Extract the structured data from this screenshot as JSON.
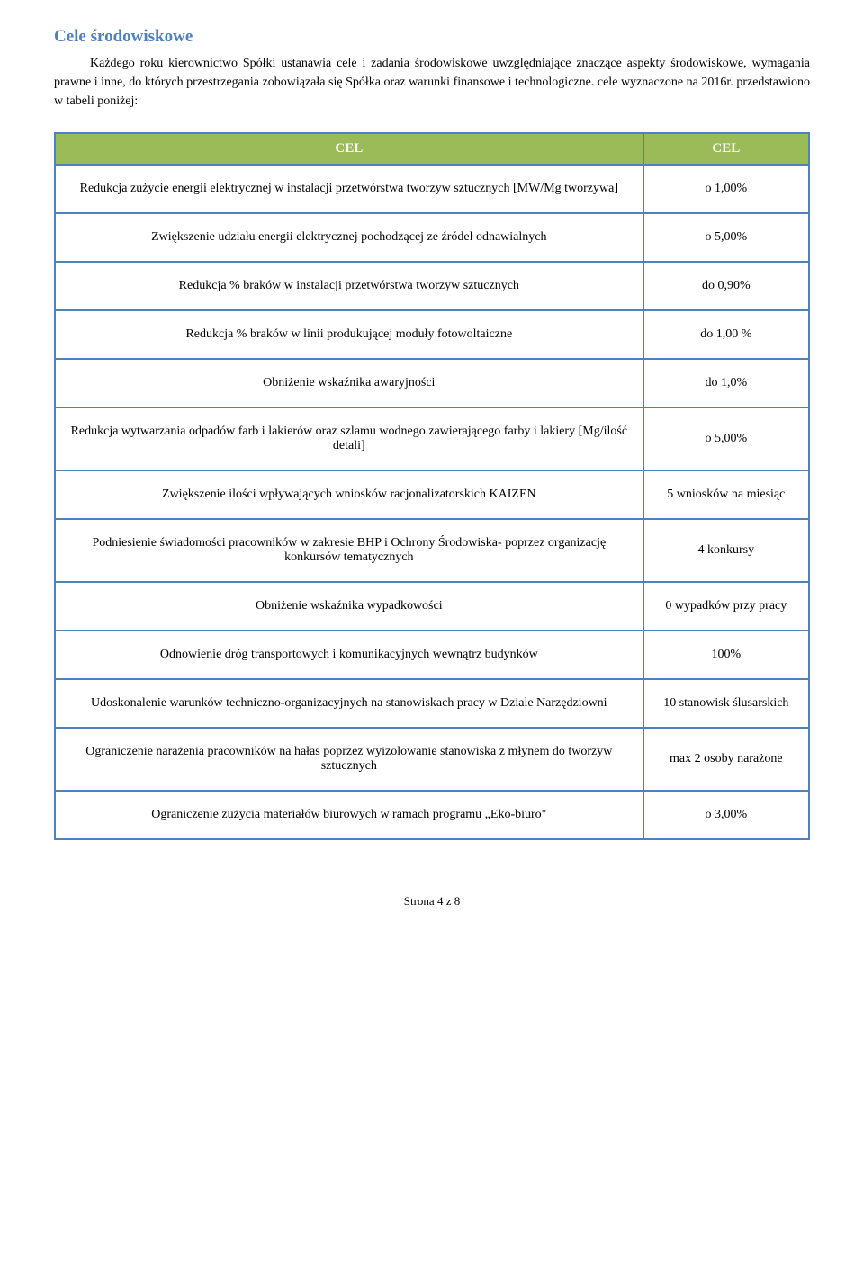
{
  "title": "Cele środowiskowe",
  "intro": "Każdego roku kierownictwo Spółki ustanawia cele i zadania środowiskowe uwzględniające znaczące aspekty środowiskowe, wymagania prawne i inne, do których przestrzegania zobowiązała się Spółka oraz warunki finansowe i technologiczne. cele wyznaczone na 2016r. przedstawiono w tabeli poniżej:",
  "table": {
    "header_left": "CEL",
    "header_right": "CEL",
    "rows": [
      {
        "desc": "Redukcja zużycie energii elektrycznej w instalacji przetwórstwa tworzyw sztucznych [MW/Mg tworzywa]",
        "val": "o 1,00%"
      },
      {
        "desc": "Zwiększenie udziału energii elektrycznej pochodzącej ze źródeł odnawialnych",
        "val": "o 5,00%"
      },
      {
        "desc": "Redukcja % braków w instalacji przetwórstwa tworzyw sztucznych",
        "val": "do 0,90%"
      },
      {
        "desc": "Redukcja % braków w linii produkującej moduły fotowoltaiczne",
        "val": "do 1,00 %"
      },
      {
        "desc": "Obniżenie wskaźnika awaryjności",
        "val": "do 1,0%"
      },
      {
        "desc": "Redukcja wytwarzania odpadów farb i lakierów oraz szlamu wodnego zawierającego farby i lakiery [Mg/ilość detali]",
        "val": "o 5,00%"
      },
      {
        "desc": "Zwiększenie ilości wpływających wniosków racjonalizatorskich KAIZEN",
        "val": "5 wniosków na miesiąc"
      },
      {
        "desc": "Podniesienie świadomości pracowników w zakresie BHP i Ochrony Środowiska- poprzez organizację konkursów tematycznych",
        "val": "4 konkursy"
      },
      {
        "desc": "Obniżenie wskaźnika wypadkowości",
        "val": "0 wypadków przy pracy"
      },
      {
        "desc": "Odnowienie dróg transportowych i komunikacyjnych wewnątrz budynków",
        "val": "100%"
      },
      {
        "desc": "Udoskonalenie warunków techniczno-organizacyjnych na stanowiskach pracy w Dziale Narzędziowni",
        "val": "10 stanowisk ślusarskich"
      },
      {
        "desc": "Ograniczenie narażenia pracowników na hałas poprzez wyizolowanie stanowiska z młynem do tworzyw sztucznych",
        "val": "max 2 osoby narażone"
      },
      {
        "desc": "Ograniczenie zużycia materiałów biurowych w ramach programu „Eko-biuro\"",
        "val": "o 3,00%"
      }
    ]
  },
  "footer": "Strona 4 z 8"
}
